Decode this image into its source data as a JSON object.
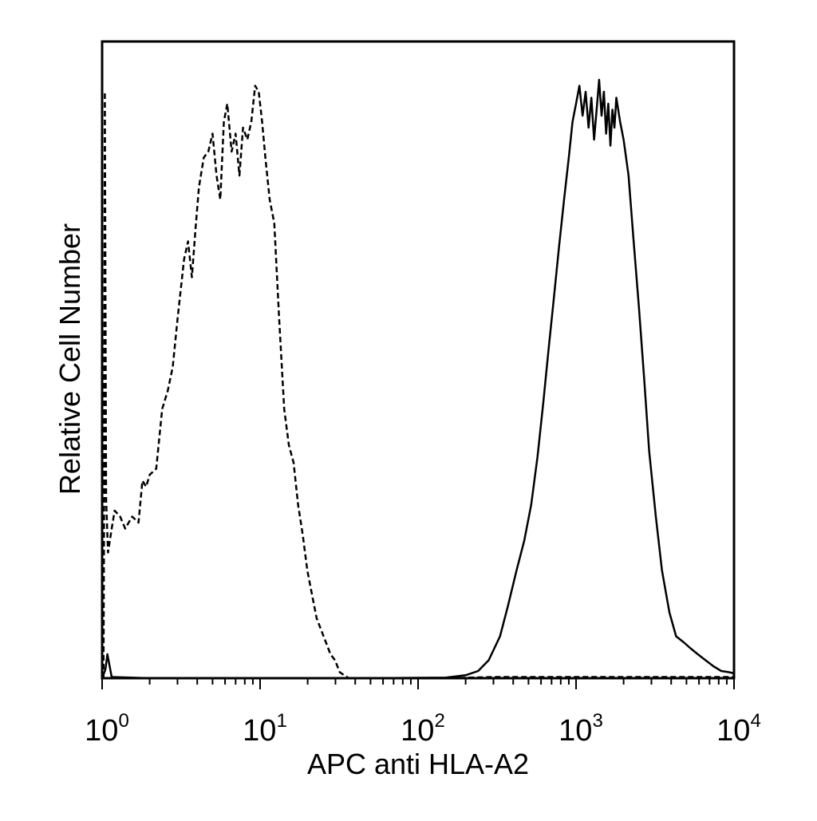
{
  "chart_data": {
    "type": "line",
    "title": "",
    "xlabel": "APC anti HLA-A2",
    "ylabel": "Relative Cell Number",
    "x_scale": "log",
    "xlim": [
      1,
      10000
    ],
    "ylim": [
      0,
      1.0
    ],
    "grid": false,
    "legend": "none",
    "x_ticks": [
      {
        "value": 1,
        "base": "10",
        "exp": "0"
      },
      {
        "value": 10,
        "base": "10",
        "exp": "1"
      },
      {
        "value": 100,
        "base": "10",
        "exp": "2"
      },
      {
        "value": 1000,
        "base": "10",
        "exp": "3"
      },
      {
        "value": 10000,
        "base": "10",
        "exp": "4"
      }
    ],
    "series": [
      {
        "style": "dashed",
        "color": "#000000",
        "x": [
          1.02,
          1.03,
          1.04,
          1.06,
          1.09,
          1.15,
          1.2,
          1.3,
          1.4,
          1.55,
          1.7,
          1.8,
          1.9,
          2.0,
          2.2,
          2.4,
          2.6,
          2.8,
          3.0,
          3.3,
          3.5,
          3.7,
          3.9,
          4.1,
          4.4,
          4.7,
          5.0,
          5.3,
          5.6,
          5.9,
          6.2,
          6.6,
          7.0,
          7.4,
          7.8,
          8.3,
          8.8,
          9.3,
          9.8,
          10.3,
          10.8,
          11.5,
          12.3,
          13.2,
          14.2,
          15.2,
          16.3,
          17.4,
          18.6,
          19.9,
          21.3,
          22.8,
          24.4,
          26.1,
          27.9,
          29.8,
          31.9,
          34.1,
          36.5,
          45,
          80,
          150,
          300,
          1000,
          3000,
          10000
        ],
        "values": [
          0.0,
          0.3,
          0.98,
          0.3,
          0.21,
          0.25,
          0.28,
          0.27,
          0.25,
          0.27,
          0.26,
          0.33,
          0.32,
          0.34,
          0.35,
          0.45,
          0.48,
          0.52,
          0.6,
          0.7,
          0.73,
          0.67,
          0.75,
          0.82,
          0.87,
          0.88,
          0.91,
          0.84,
          0.8,
          0.93,
          0.96,
          0.88,
          0.91,
          0.84,
          0.92,
          0.9,
          0.93,
          0.99,
          0.98,
          0.93,
          0.87,
          0.8,
          0.76,
          0.6,
          0.45,
          0.39,
          0.36,
          0.29,
          0.24,
          0.18,
          0.14,
          0.1,
          0.08,
          0.06,
          0.04,
          0.03,
          0.01,
          0.005,
          0.0,
          0.0,
          0.0,
          0.0,
          0.002,
          0.002,
          0.002,
          0.002
        ]
      },
      {
        "style": "solid",
        "color": "#000000",
        "x": [
          1.0,
          1.05,
          1.08,
          1.15,
          2,
          10,
          50,
          150,
          200,
          240,
          280,
          330,
          370,
          420,
          470,
          520,
          570,
          620,
          670,
          720,
          780,
          840,
          900,
          950,
          1000,
          1050,
          1100,
          1150,
          1200,
          1250,
          1300,
          1350,
          1400,
          1450,
          1500,
          1550,
          1600,
          1650,
          1700,
          1750,
          1800,
          1900,
          2000,
          2150,
          2300,
          2500,
          2700,
          2900,
          3200,
          3500,
          3900,
          4300,
          4800,
          5300,
          5900,
          6600,
          7400,
          8300,
          9300,
          10000
        ],
        "values": [
          0.0,
          0.015,
          0.04,
          0.002,
          0.0,
          0.0,
          0.0,
          0.001,
          0.005,
          0.012,
          0.03,
          0.07,
          0.12,
          0.18,
          0.23,
          0.29,
          0.37,
          0.46,
          0.55,
          0.63,
          0.72,
          0.8,
          0.87,
          0.93,
          0.96,
          0.99,
          0.94,
          0.98,
          0.92,
          0.97,
          0.9,
          0.95,
          1.0,
          0.94,
          0.98,
          0.91,
          0.96,
          0.89,
          0.95,
          0.92,
          0.97,
          0.93,
          0.9,
          0.84,
          0.74,
          0.62,
          0.5,
          0.38,
          0.27,
          0.18,
          0.11,
          0.07,
          0.06,
          0.05,
          0.04,
          0.03,
          0.02,
          0.012,
          0.01,
          0.008
        ]
      }
    ]
  }
}
